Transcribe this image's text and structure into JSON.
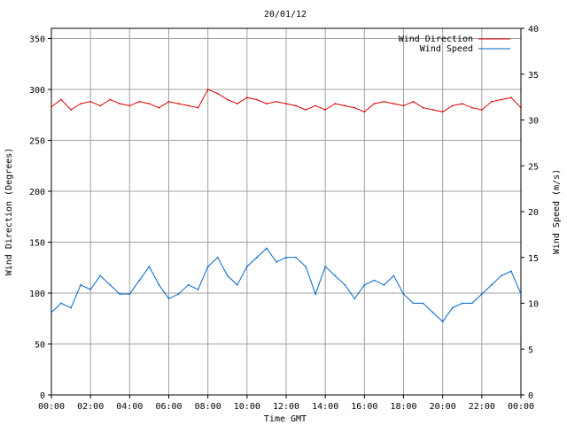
{
  "chart_data": {
    "type": "line",
    "title": "20/01/12",
    "xlabel": "Time GMT",
    "ylabel_left": "Wind Direction (Degrees)",
    "ylabel_right": "Wind Speed (m/s)",
    "xlim_hours": [
      0,
      24
    ],
    "ylim_left": [
      0,
      360
    ],
    "ylim_right": [
      0,
      40
    ],
    "x_ticks": [
      "00:00",
      "02:00",
      "04:00",
      "06:00",
      "08:00",
      "10:00",
      "12:00",
      "14:00",
      "16:00",
      "18:00",
      "20:00",
      "22:00",
      "00:00"
    ],
    "y_ticks_left": [
      "0",
      "50",
      "100",
      "150",
      "200",
      "250",
      "300",
      "350"
    ],
    "y_ticks_right": [
      "0",
      "5",
      "10",
      "15",
      "20",
      "25",
      "30",
      "35",
      "40"
    ],
    "grid": true,
    "legend_position": "top-right",
    "series": [
      {
        "name": "Wind Direction",
        "axis": "left",
        "color": "#dd0000",
        "x_hours": [
          0,
          0.5,
          1,
          1.5,
          2,
          2.5,
          3,
          3.5,
          4,
          4.5,
          5,
          5.5,
          6,
          6.5,
          7,
          7.5,
          8,
          8.5,
          9,
          9.5,
          10,
          10.5,
          11,
          11.5,
          12,
          12.5,
          13,
          13.5,
          14,
          14.5,
          15,
          15.5,
          16,
          16.5,
          17,
          17.5,
          18,
          18.5,
          19,
          19.5,
          20,
          20.5,
          21,
          21.5,
          22,
          22.5,
          23,
          23.5,
          24
        ],
        "values": [
          283,
          290,
          280,
          286,
          288,
          284,
          290,
          286,
          284,
          288,
          286,
          282,
          288,
          286,
          284,
          282,
          300,
          296,
          290,
          286,
          292,
          290,
          286,
          288,
          286,
          284,
          280,
          284,
          280,
          286,
          284,
          282,
          278,
          286,
          288,
          286,
          284,
          288,
          282,
          280,
          278,
          284,
          286,
          282,
          280,
          288,
          290,
          292,
          282
        ]
      },
      {
        "name": "Wind Speed",
        "axis": "right",
        "color": "#0066cc",
        "x_hours": [
          0,
          0.5,
          1,
          1.5,
          2,
          2.5,
          3,
          3.5,
          4,
          4.5,
          5,
          5.5,
          6,
          6.5,
          7,
          7.5,
          8,
          8.5,
          9,
          9.5,
          10,
          10.5,
          11,
          11.5,
          12,
          12.5,
          13,
          13.5,
          14,
          14.5,
          15,
          15.5,
          16,
          16.5,
          17,
          17.5,
          18,
          18.5,
          19,
          19.5,
          20,
          20.5,
          21,
          21.5,
          22,
          22.5,
          23,
          23.5,
          24
        ],
        "values": [
          9,
          10,
          9.5,
          12,
          11.5,
          13,
          12,
          11,
          11,
          12.5,
          14,
          12,
          10.5,
          11,
          12,
          11.5,
          14,
          15,
          13,
          12,
          14,
          15,
          16,
          14.5,
          15,
          15,
          14,
          11,
          14,
          13,
          12,
          10.5,
          12,
          12.5,
          12,
          13,
          11,
          10,
          10,
          9,
          8,
          9.5,
          10,
          10,
          11,
          12,
          13,
          13.5,
          11
        ]
      }
    ]
  }
}
